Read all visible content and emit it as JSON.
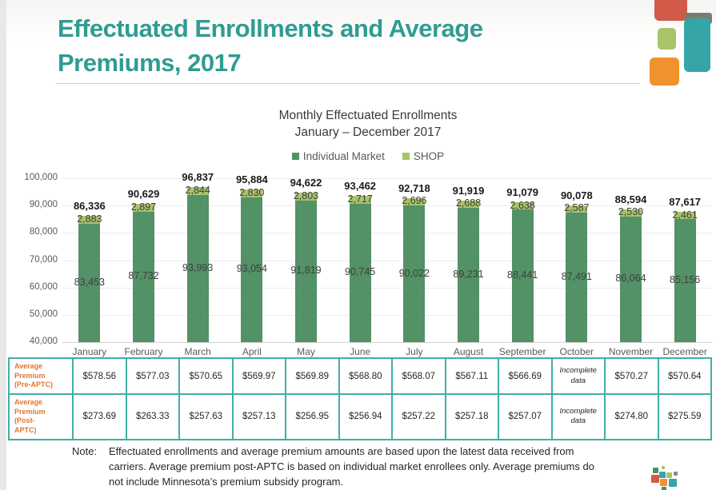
{
  "slide": {
    "title": "Effectuated Enrollments and Average Premiums, 2017"
  },
  "chart_data": {
    "type": "bar",
    "stacked": true,
    "title": "Monthly Effectuated Enrollments",
    "subtitle": "January – December 2017",
    "categories": [
      "January",
      "February",
      "March",
      "April",
      "May",
      "June",
      "July",
      "August",
      "September",
      "October",
      "November",
      "December"
    ],
    "series": [
      {
        "name": "Individual Market",
        "color": "#539166",
        "values": [
          83453,
          87732,
          93993,
          93054,
          91819,
          90745,
          90022,
          89231,
          88441,
          87491,
          86064,
          85156
        ]
      },
      {
        "name": "SHOP",
        "color": "#a8c36a",
        "values": [
          2883,
          2897,
          2844,
          2830,
          2803,
          2717,
          2696,
          2688,
          2638,
          2587,
          2530,
          2461
        ]
      }
    ],
    "totals": [
      86336,
      90629,
      96837,
      95884,
      94622,
      93462,
      92718,
      91919,
      91079,
      90078,
      88594,
      87617
    ],
    "y_axis": {
      "min": 40000,
      "max": 100000,
      "step": 10000,
      "tick_labels": [
        "40,000",
        "50,000",
        "60,000",
        "70,000",
        "80,000",
        "90,000",
        "100,000"
      ]
    },
    "grid": true,
    "legend_position": "top"
  },
  "table": {
    "rows": [
      {
        "label": "Average Premium (Pre-APTC)",
        "values": [
          "$578.56",
          "$577.03",
          "$570.65",
          "$569.97",
          "$569.89",
          "$568.80",
          "$568.07",
          "$567.11",
          "$566.69",
          "Incomplete data",
          "$570.27",
          "$570.64"
        ]
      },
      {
        "label": "Average Premium (Post-APTC)",
        "values": [
          "$273.69",
          "$263.33",
          "$257.63",
          "$257.13",
          "$256.95",
          "$256.94",
          "$257.22",
          "$257.18",
          "$257.07",
          "Incomplete data",
          "$274.80",
          "$275.59"
        ]
      }
    ]
  },
  "note": {
    "label": "Note:",
    "text": "Effectuated enrollments and average premium amounts are based upon the latest data received from carriers. Average premium post-APTC is based on individual market enrollees only. Average premiums do not include Minnesota’s premium subsidy program."
  },
  "colors": {
    "title_teal": "#2f9c93",
    "bar_individual": "#539166",
    "bar_shop": "#a8c36a",
    "table_border": "#3fafa6",
    "table_label_orange": "#e0762f",
    "deco_red": "#d25a49",
    "deco_gray": "#7b7b72",
    "deco_teal": "#35a5a8",
    "deco_green": "#a8c36a",
    "deco_orange": "#f0922e",
    "logo_squares": [
      "#4c8f63",
      "#a8c36a",
      "#35a5a8",
      "#a8c36a",
      "#8a8a80",
      "#d25a49",
      "#f0922e",
      "#35a5a8",
      "#4c8f63"
    ]
  }
}
